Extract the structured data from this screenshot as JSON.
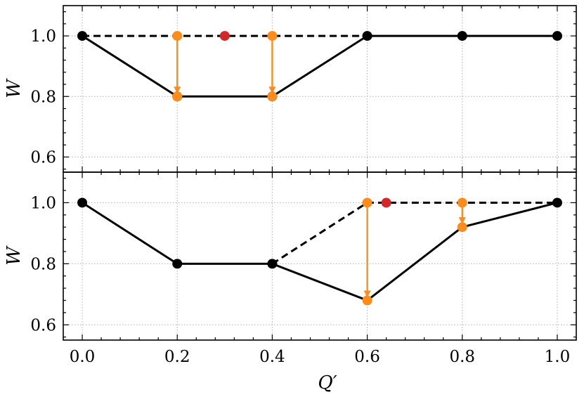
{
  "chart_data": [
    {
      "type": "line",
      "panel": "top",
      "xlabel": "",
      "ylabel": "W",
      "xlim": [
        -0.04,
        1.04
      ],
      "ylim": [
        0.55,
        1.1
      ],
      "xticks": [
        0.0,
        0.2,
        0.4,
        0.6,
        0.8,
        1.0
      ],
      "yticks": [
        0.6,
        0.8,
        1.0
      ],
      "ytick_labels": [
        "0.6",
        "0.8",
        "1.0"
      ],
      "grid": true,
      "series": [
        {
          "color": "#000000",
          "style": "solid",
          "markers": true,
          "points": [
            [
              0.0,
              1.0
            ],
            [
              0.2,
              0.8
            ],
            [
              0.4,
              0.8
            ],
            [
              0.6,
              1.0
            ],
            [
              0.8,
              1.0
            ],
            [
              1.0,
              1.0
            ]
          ]
        },
        {
          "color": "#000000",
          "style": "dashed",
          "markers": false,
          "points": [
            [
              0.0,
              1.0
            ],
            [
              0.6,
              1.0
            ]
          ]
        }
      ],
      "orange_points": [
        [
          0.2,
          1.0
        ],
        [
          0.4,
          1.0
        ],
        [
          0.2,
          0.8
        ],
        [
          0.4,
          0.8
        ]
      ],
      "red_points": [
        [
          0.3,
          1.0
        ]
      ],
      "arrows": [
        {
          "from": [
            0.2,
            1.0
          ],
          "to": [
            0.2,
            0.8
          ]
        },
        {
          "from": [
            0.4,
            1.0
          ],
          "to": [
            0.4,
            0.8
          ]
        }
      ],
      "colors": {
        "line": "#000000",
        "orange": "#ff8c1a",
        "red": "#d62728",
        "grid": "#b0b0b0"
      }
    },
    {
      "type": "line",
      "panel": "bottom",
      "xlabel": "Q′",
      "ylabel": "W",
      "xlim": [
        -0.04,
        1.04
      ],
      "ylim": [
        0.55,
        1.1
      ],
      "xticks": [
        0.0,
        0.2,
        0.4,
        0.6,
        0.8,
        1.0
      ],
      "xtick_labels": [
        "0.0",
        "0.2",
        "0.4",
        "0.6",
        "0.8",
        "1.0"
      ],
      "yticks": [
        0.6,
        0.8,
        1.0
      ],
      "ytick_labels": [
        "0.6",
        "0.8",
        "1.0"
      ],
      "grid": true,
      "series": [
        {
          "color": "#000000",
          "style": "solid",
          "markers": true,
          "points": [
            [
              0.0,
              1.0
            ],
            [
              0.2,
              0.8
            ],
            [
              0.4,
              0.8
            ]
          ]
        },
        {
          "color": "#000000",
          "style": "solid",
          "markers": false,
          "points": [
            [
              0.4,
              0.8
            ],
            [
              0.6,
              0.68
            ],
            [
              0.8,
              0.92
            ],
            [
              1.0,
              1.0
            ]
          ]
        },
        {
          "color": "#000000",
          "style": "dashed",
          "markers": false,
          "points": [
            [
              0.4,
              0.8
            ],
            [
              0.6,
              1.0
            ],
            [
              1.0,
              1.0
            ]
          ]
        }
      ],
      "black_points_extra": [
        [
          1.0,
          1.0
        ]
      ],
      "orange_points": [
        [
          0.6,
          1.0
        ],
        [
          0.8,
          1.0
        ],
        [
          0.6,
          0.68
        ],
        [
          0.8,
          0.92
        ]
      ],
      "red_points": [
        [
          0.64,
          1.0
        ]
      ],
      "arrows": [
        {
          "from": [
            0.6,
            1.0
          ],
          "to": [
            0.6,
            0.68
          ]
        },
        {
          "from": [
            0.8,
            1.0
          ],
          "to": [
            0.8,
            0.92
          ]
        }
      ],
      "colors": {
        "line": "#000000",
        "orange": "#ff8c1a",
        "red": "#d62728",
        "grid": "#b0b0b0"
      }
    }
  ]
}
